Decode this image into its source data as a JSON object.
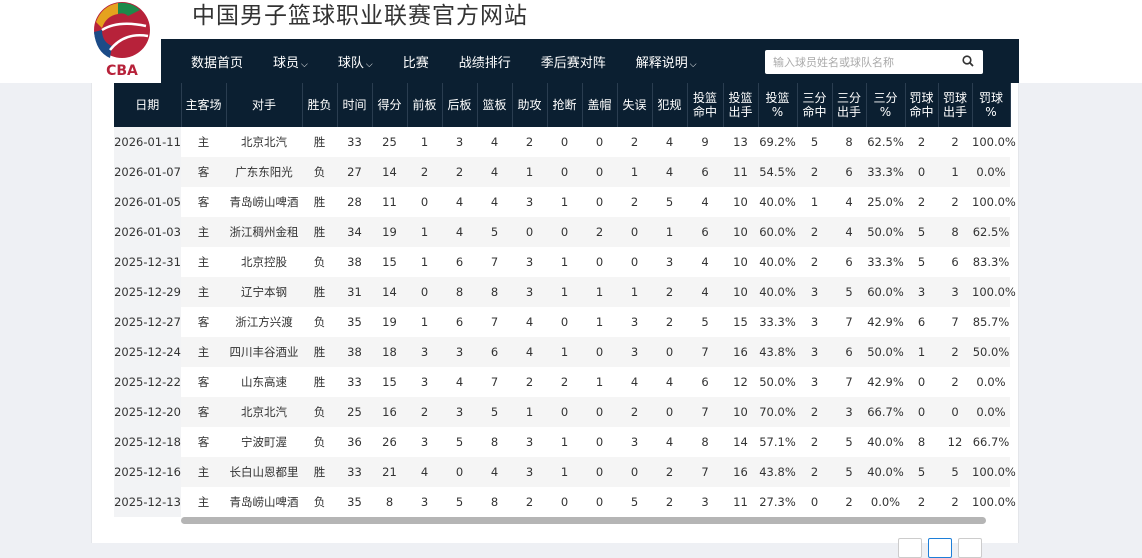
{
  "site": {
    "title": "中国男子篮球职业联赛官方网站",
    "logo_text": "CBA"
  },
  "nav": {
    "items": [
      {
        "label": "数据首页",
        "dropdown": false
      },
      {
        "label": "球员",
        "dropdown": true
      },
      {
        "label": "球队",
        "dropdown": true
      },
      {
        "label": "比赛",
        "dropdown": false
      },
      {
        "label": "战绩排行",
        "dropdown": false
      },
      {
        "label": "季后赛对阵",
        "dropdown": false
      },
      {
        "label": "解释说明",
        "dropdown": true
      }
    ],
    "chevron": "⌵"
  },
  "search": {
    "placeholder": "输入球员姓名或球队名称",
    "value": "",
    "icon": "search-icon"
  },
  "table": {
    "headers": [
      "日期",
      "主客场",
      "对手",
      "胜负",
      "时间",
      "得分",
      "前板",
      "后板",
      "篮板",
      "助攻",
      "抢断",
      "盖帽",
      "失误",
      "犯规",
      "投篮\n命中",
      "投篮\n出手",
      "投篮\n%",
      "三分\n命中",
      "三分\n出手",
      "三分\n%",
      "罚球\n命中",
      "罚球\n出手",
      "罚球\n%"
    ],
    "rows": [
      [
        "2026-01-11",
        "主",
        "北京北汽",
        "胜",
        "33",
        "25",
        "1",
        "3",
        "4",
        "2",
        "0",
        "0",
        "2",
        "4",
        "9",
        "13",
        "69.2%",
        "5",
        "8",
        "62.5%",
        "2",
        "2",
        "100.0%"
      ],
      [
        "2026-01-07",
        "客",
        "广东东阳光",
        "负",
        "27",
        "14",
        "2",
        "2",
        "4",
        "1",
        "0",
        "0",
        "1",
        "4",
        "6",
        "11",
        "54.5%",
        "2",
        "6",
        "33.3%",
        "0",
        "1",
        "0.0%"
      ],
      [
        "2026-01-05",
        "客",
        "青岛崂山啤酒",
        "胜",
        "28",
        "11",
        "0",
        "4",
        "4",
        "3",
        "1",
        "0",
        "2",
        "5",
        "4",
        "10",
        "40.0%",
        "1",
        "4",
        "25.0%",
        "2",
        "2",
        "100.0%"
      ],
      [
        "2026-01-03",
        "主",
        "浙江稠州金租",
        "胜",
        "34",
        "19",
        "1",
        "4",
        "5",
        "0",
        "0",
        "2",
        "0",
        "1",
        "6",
        "10",
        "60.0%",
        "2",
        "4",
        "50.0%",
        "5",
        "8",
        "62.5%"
      ],
      [
        "2025-12-31",
        "主",
        "北京控股",
        "负",
        "38",
        "15",
        "1",
        "6",
        "7",
        "3",
        "1",
        "0",
        "0",
        "3",
        "4",
        "10",
        "40.0%",
        "2",
        "6",
        "33.3%",
        "5",
        "6",
        "83.3%"
      ],
      [
        "2025-12-29",
        "主",
        "辽宁本钢",
        "胜",
        "31",
        "14",
        "0",
        "8",
        "8",
        "3",
        "1",
        "1",
        "1",
        "2",
        "4",
        "10",
        "40.0%",
        "3",
        "5",
        "60.0%",
        "3",
        "3",
        "100.0%"
      ],
      [
        "2025-12-27",
        "客",
        "浙江方兴渡",
        "负",
        "35",
        "19",
        "1",
        "6",
        "7",
        "4",
        "0",
        "1",
        "3",
        "2",
        "5",
        "15",
        "33.3%",
        "3",
        "7",
        "42.9%",
        "6",
        "7",
        "85.7%"
      ],
      [
        "2025-12-24",
        "主",
        "四川丰谷酒业",
        "胜",
        "38",
        "18",
        "3",
        "3",
        "6",
        "4",
        "1",
        "0",
        "3",
        "0",
        "7",
        "16",
        "43.8%",
        "3",
        "6",
        "50.0%",
        "1",
        "2",
        "50.0%"
      ],
      [
        "2025-12-22",
        "客",
        "山东高速",
        "胜",
        "33",
        "15",
        "3",
        "4",
        "7",
        "2",
        "2",
        "1",
        "4",
        "4",
        "6",
        "12",
        "50.0%",
        "3",
        "7",
        "42.9%",
        "0",
        "2",
        "0.0%"
      ],
      [
        "2025-12-20",
        "客",
        "北京北汽",
        "负",
        "25",
        "16",
        "2",
        "3",
        "5",
        "1",
        "0",
        "0",
        "2",
        "0",
        "7",
        "10",
        "70.0%",
        "2",
        "3",
        "66.7%",
        "0",
        "0",
        "0.0%"
      ],
      [
        "2025-12-18",
        "客",
        "宁波町渥",
        "负",
        "36",
        "26",
        "3",
        "5",
        "8",
        "3",
        "1",
        "0",
        "3",
        "4",
        "8",
        "14",
        "57.1%",
        "2",
        "5",
        "40.0%",
        "8",
        "12",
        "66.7%"
      ],
      [
        "2025-12-16",
        "主",
        "长白山恩都里",
        "胜",
        "33",
        "21",
        "4",
        "0",
        "4",
        "3",
        "1",
        "0",
        "0",
        "2",
        "7",
        "16",
        "43.8%",
        "2",
        "5",
        "40.0%",
        "5",
        "5",
        "100.0%"
      ],
      [
        "2025-12-13",
        "主",
        "青岛崂山啤酒",
        "负",
        "35",
        "8",
        "3",
        "5",
        "8",
        "2",
        "0",
        "0",
        "5",
        "2",
        "3",
        "11",
        "27.3%",
        "0",
        "2",
        "0.0%",
        "2",
        "2",
        "100.0%"
      ]
    ]
  },
  "colors": {
    "nav_bg": "#0b1f31",
    "active_page": "#1e7fd8"
  }
}
